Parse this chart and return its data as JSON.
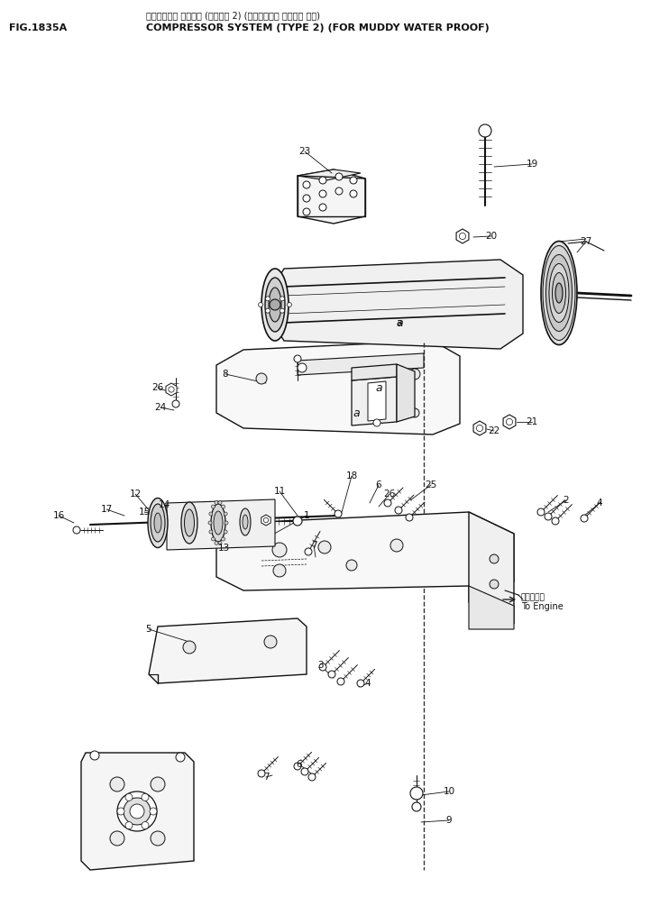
{
  "fig_label": "FIG.1835A",
  "title_jp": "コンプレッサ システム (タイプ゜ 2) (ト゜ロミス゜ ホ゜ウジ ヨウ)",
  "title_en": "COMPRESSOR SYSTEM (TYPE 2) (FOR MUDDY WATER PROOF)",
  "bg_color": "#ffffff",
  "lc": "#111111",
  "to_engine_jp": "エンジンヘ",
  "to_engine_en": "To Engine"
}
